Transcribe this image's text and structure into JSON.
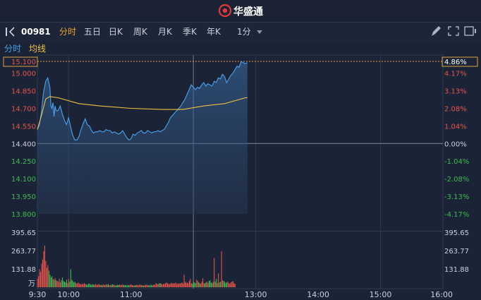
{
  "header": {
    "brand": "华盛通",
    "brand_color": "#e23a3a"
  },
  "toolbar": {
    "code": "00981",
    "tabs": [
      {
        "label": "分时",
        "active": true
      },
      {
        "label": "五日",
        "active": false
      },
      {
        "label": "日K",
        "active": false
      },
      {
        "label": "周K",
        "active": false
      },
      {
        "label": "月K",
        "active": false
      },
      {
        "label": "季K",
        "active": false
      },
      {
        "label": "年K",
        "active": false
      }
    ],
    "period_label": "1分",
    "icons": [
      "panel-toggle-icon",
      "dropdown-caret-icon",
      "edit-icon",
      "expand-icon",
      "grid-icon"
    ]
  },
  "legend": {
    "price_label": "分时",
    "avg_label": "均线",
    "price_color": "#4aa3f0",
    "avg_color": "#f0c040"
  },
  "colors": {
    "up": "#e5534b",
    "down": "#3fb950",
    "neutral": "#c9d1dd",
    "background": "#1b2436",
    "grid": "#2c3a52",
    "dashed": "#e0a040"
  },
  "chart_data": {
    "type": "line",
    "prev_close": 14.4,
    "ylim": [
      13.8,
      15.1
    ],
    "price_ticks": [
      "15.100",
      "15.000",
      "14.850",
      "14.700",
      "14.550",
      "14.400",
      "14.250",
      "14.100",
      "13.950",
      "13.800"
    ],
    "pct_ticks": [
      "4.86%",
      "4.17%",
      "3.13%",
      "2.08%",
      "1.04%",
      "0.00%",
      "-1.04%",
      "-2.08%",
      "-3.13%",
      "-4.17%"
    ],
    "volume_ticks": [
      "395.65",
      "263.77",
      "131.88"
    ],
    "volume_unit": "万",
    "volume_max": 395.65,
    "time_ticks": [
      "9:30",
      "10:00",
      "11:00",
      "13:00",
      "14:00",
      "15:00",
      "16:00"
    ],
    "session_minutes": 390,
    "price_series": {
      "name": "分时",
      "points": [
        [
          0,
          14.52
        ],
        [
          2,
          14.56
        ],
        [
          4,
          14.68
        ],
        [
          6,
          14.84
        ],
        [
          8,
          14.93
        ],
        [
          10,
          14.96
        ],
        [
          12,
          14.88
        ],
        [
          13,
          14.72
        ],
        [
          14,
          14.7
        ],
        [
          15,
          14.75
        ],
        [
          16,
          14.63
        ],
        [
          17,
          14.72
        ],
        [
          18,
          14.68
        ],
        [
          20,
          14.68
        ],
        [
          22,
          14.72
        ],
        [
          24,
          14.65
        ],
        [
          26,
          14.6
        ],
        [
          28,
          14.56
        ],
        [
          30,
          14.62
        ],
        [
          32,
          14.54
        ],
        [
          34,
          14.47
        ],
        [
          36,
          14.43
        ],
        [
          38,
          14.43
        ],
        [
          40,
          14.46
        ],
        [
          42,
          14.52
        ],
        [
          44,
          14.57
        ],
        [
          46,
          14.61
        ],
        [
          48,
          14.56
        ],
        [
          50,
          14.55
        ],
        [
          52,
          14.51
        ],
        [
          54,
          14.49
        ],
        [
          56,
          14.5
        ],
        [
          58,
          14.5
        ],
        [
          60,
          14.51
        ],
        [
          62,
          14.5
        ],
        [
          64,
          14.5
        ],
        [
          66,
          14.52
        ],
        [
          68,
          14.51
        ],
        [
          70,
          14.51
        ],
        [
          72,
          14.49
        ],
        [
          74,
          14.5
        ],
        [
          76,
          14.49
        ],
        [
          78,
          14.48
        ],
        [
          80,
          14.49
        ],
        [
          82,
          14.51
        ],
        [
          84,
          14.48
        ],
        [
          86,
          14.45
        ],
        [
          88,
          14.43
        ],
        [
          90,
          14.44
        ],
        [
          92,
          14.48
        ],
        [
          94,
          14.47
        ],
        [
          96,
          14.49
        ],
        [
          98,
          14.5
        ],
        [
          100,
          14.51
        ],
        [
          102,
          14.49
        ],
        [
          104,
          14.49
        ],
        [
          106,
          14.51
        ],
        [
          108,
          14.5
        ],
        [
          110,
          14.49
        ],
        [
          112,
          14.5
        ],
        [
          114,
          14.5
        ],
        [
          116,
          14.51
        ],
        [
          118,
          14.5
        ],
        [
          120,
          14.51
        ],
        [
          122,
          14.52
        ],
        [
          124,
          14.55
        ],
        [
          126,
          14.58
        ],
        [
          128,
          14.62
        ],
        [
          130,
          14.64
        ],
        [
          132,
          14.66
        ],
        [
          134,
          14.68
        ],
        [
          136,
          14.7
        ],
        [
          138,
          14.72
        ],
        [
          140,
          14.75
        ],
        [
          142,
          14.78
        ],
        [
          144,
          14.82
        ],
        [
          146,
          14.86
        ],
        [
          148,
          14.9
        ],
        [
          150,
          14.88
        ],
        [
          152,
          14.86
        ],
        [
          154,
          14.88
        ],
        [
          156,
          14.87
        ],
        [
          158,
          14.9
        ],
        [
          160,
          14.92
        ],
        [
          162,
          14.89
        ],
        [
          164,
          14.91
        ],
        [
          166,
          14.9
        ],
        [
          168,
          14.89
        ],
        [
          170,
          14.93
        ],
        [
          172,
          14.92
        ],
        [
          174,
          14.96
        ],
        [
          176,
          14.95
        ],
        [
          178,
          14.99
        ],
        [
          180,
          14.97
        ],
        [
          182,
          14.92
        ],
        [
          184,
          14.95
        ],
        [
          186,
          14.98
        ],
        [
          188,
          15.0
        ],
        [
          190,
          15.03
        ],
        [
          192,
          15.06
        ],
        [
          194,
          15.05
        ],
        [
          196,
          15.1
        ],
        [
          198,
          15.09
        ],
        [
          200,
          15.08
        ],
        [
          202,
          15.09
        ]
      ]
    },
    "avg_series": {
      "name": "均线",
      "points": [
        [
          0,
          14.52
        ],
        [
          4,
          14.64
        ],
        [
          8,
          14.78
        ],
        [
          12,
          14.8
        ],
        [
          20,
          14.79
        ],
        [
          40,
          14.74
        ],
        [
          60,
          14.72
        ],
        [
          90,
          14.7
        ],
        [
          120,
          14.69
        ],
        [
          140,
          14.69
        ],
        [
          160,
          14.72
        ],
        [
          180,
          14.74
        ],
        [
          200,
          14.79
        ],
        [
          202,
          14.79
        ]
      ]
    },
    "volume": [
      60,
      80,
      130,
      110,
      170,
      200,
      260,
      300,
      190,
      140,
      160,
      120,
      90,
      70,
      80,
      60,
      55,
      65,
      50,
      45,
      40,
      60,
      35,
      50,
      70,
      45,
      40,
      35,
      55,
      30,
      60,
      40,
      130,
      55,
      45,
      35,
      40,
      30,
      25,
      35,
      28,
      24,
      22,
      26,
      20,
      30,
      25,
      20,
      18,
      24,
      28,
      20,
      16,
      22,
      20,
      18,
      25,
      15,
      20,
      22,
      18,
      16,
      14,
      20,
      18,
      16,
      22,
      18,
      24,
      16,
      14,
      18,
      22,
      20,
      16,
      12,
      14,
      18,
      16,
      20,
      15,
      18,
      20,
      16,
      14,
      18,
      12,
      16,
      14,
      18,
      20,
      16,
      14,
      12,
      15,
      18,
      16,
      14,
      20,
      18,
      16,
      14,
      12,
      15,
      18,
      20,
      14,
      16,
      12,
      18,
      16,
      14,
      20,
      18,
      30,
      25,
      22,
      28,
      30,
      26,
      20,
      25,
      24,
      28,
      35,
      30,
      25,
      22,
      28,
      32,
      26,
      30,
      28,
      35,
      22,
      30,
      25,
      28,
      30,
      35,
      26,
      90,
      40,
      30,
      35,
      28,
      45,
      60,
      30,
      25,
      40,
      35,
      30,
      55,
      45,
      35,
      30,
      25,
      40,
      65,
      30,
      28,
      35,
      40,
      30,
      45,
      50,
      35,
      30,
      40,
      210,
      40,
      60,
      30,
      100,
      35,
      40,
      260,
      50,
      45,
      40,
      30,
      35,
      40,
      30,
      25,
      35,
      40,
      45,
      30,
      25
    ]
  }
}
